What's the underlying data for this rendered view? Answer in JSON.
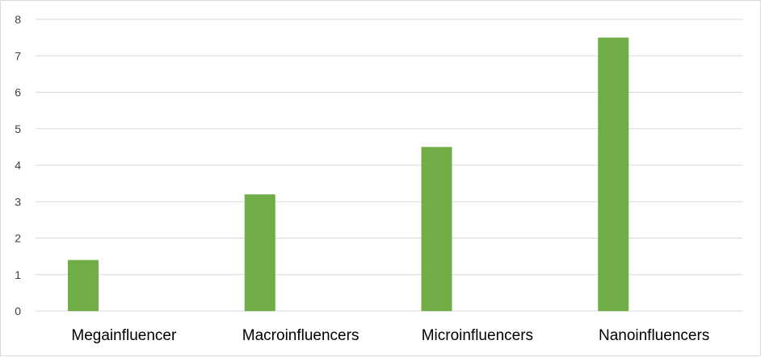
{
  "chart_data": {
    "type": "bar",
    "categories": [
      "Megainfluencer",
      "Macroinfluencers",
      "Microinfluencers",
      "Nanoinfluencers"
    ],
    "values": [
      1.4,
      3.2,
      4.5,
      7.5
    ],
    "ylim": [
      0,
      8
    ],
    "yticks": [
      "0",
      "1",
      "2",
      "3",
      "4",
      "5",
      "6",
      "7",
      "8"
    ],
    "grid": true,
    "legend": "none",
    "bar_color": "#70ad47"
  }
}
